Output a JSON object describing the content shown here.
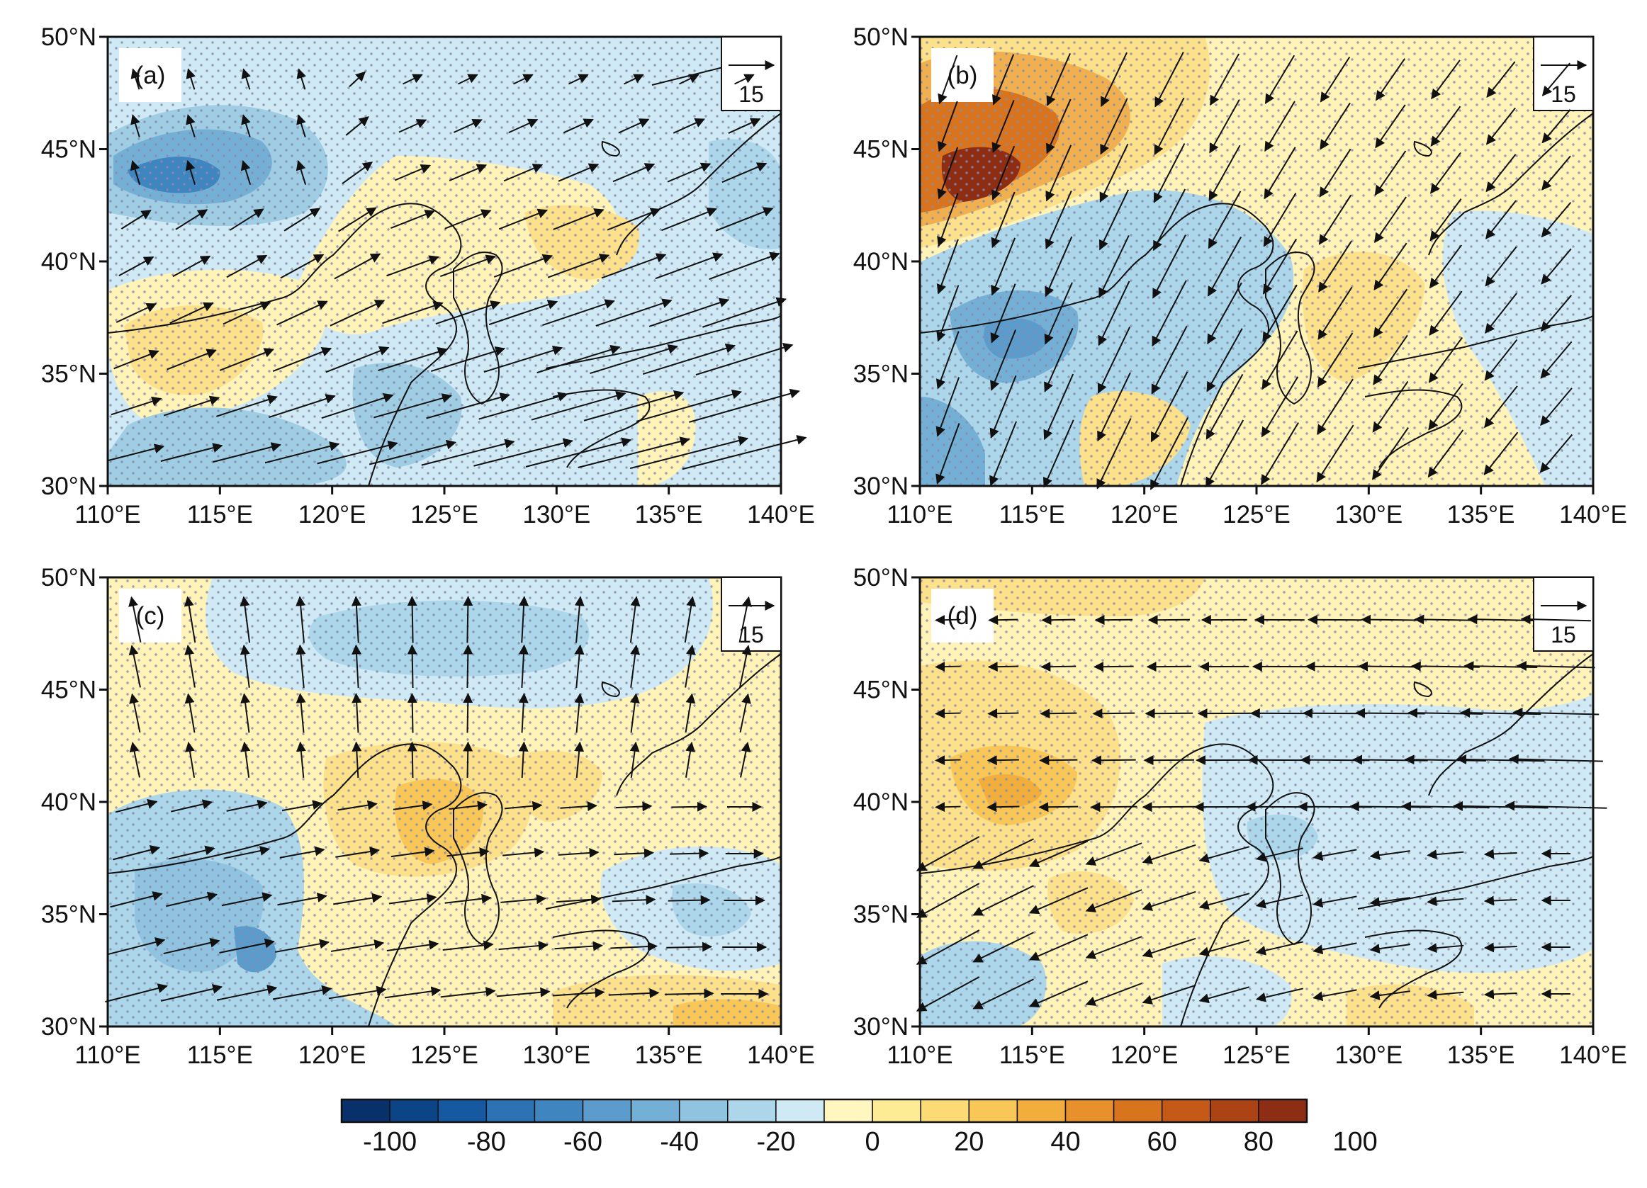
{
  "panels": [
    {
      "id": "a",
      "label": "(a)"
    },
    {
      "id": "b",
      "label": "(b)"
    },
    {
      "id": "c",
      "label": "(c)"
    },
    {
      "id": "d",
      "label": "(d)"
    }
  ],
  "axes": {
    "lat_ticks": [
      "50°N",
      "45°N",
      "40°N",
      "35°N",
      "30°N"
    ],
    "lon_ticks": [
      "110°E",
      "115°E",
      "120°E",
      "125°E",
      "130°E",
      "135°E",
      "140°E"
    ],
    "lat_range": [
      30,
      50
    ],
    "lon_range": [
      110,
      140
    ]
  },
  "reference_vector": {
    "value": "15"
  },
  "colorbar": {
    "labels": [
      "-100",
      "-80",
      "-60",
      "-40",
      "-20",
      "0",
      "20",
      "40",
      "60",
      "80",
      "100"
    ],
    "colors": [
      "#08306b",
      "#0b4585",
      "#1559a0",
      "#2c72b5",
      "#3f85c0",
      "#5b9ccc",
      "#74b0d6",
      "#8fc3e0",
      "#acd6ea",
      "#cfeaf5",
      "#fff6c0",
      "#ffeb96",
      "#fddb74",
      "#f8c757",
      "#f1ae3d",
      "#e8902b",
      "#d8731e",
      "#c55918",
      "#ac4315",
      "#8c2d14"
    ]
  },
  "colors": {
    "blue_deep": "#2f6ea9",
    "blue_mid": "#5b9ccc",
    "blue_light": "#9fcde4",
    "blue_pale": "#cfeaf5",
    "yellow_pale": "#fff3b8",
    "yellow": "#fde08a",
    "orange": "#f0b050",
    "orange_deep": "#d8731e",
    "red_deep": "#8c2d14",
    "stipple": "#8a8aa8"
  }
}
